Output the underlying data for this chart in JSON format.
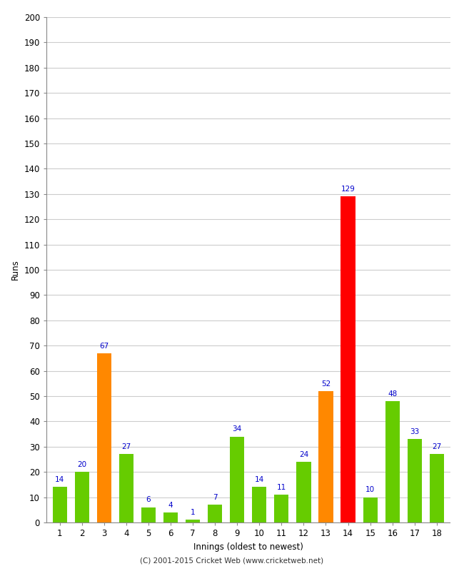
{
  "xlabel": "Innings (oldest to newest)",
  "ylabel": "Runs",
  "categories": [
    1,
    2,
    3,
    4,
    5,
    6,
    7,
    8,
    9,
    10,
    11,
    12,
    13,
    14,
    15,
    16,
    17,
    18
  ],
  "values": [
    14,
    20,
    67,
    27,
    6,
    4,
    1,
    7,
    34,
    14,
    11,
    24,
    52,
    129,
    10,
    48,
    33,
    27
  ],
  "bar_colors": [
    "#66cc00",
    "#66cc00",
    "#ff8800",
    "#66cc00",
    "#66cc00",
    "#66cc00",
    "#66cc00",
    "#66cc00",
    "#66cc00",
    "#66cc00",
    "#66cc00",
    "#66cc00",
    "#ff8800",
    "#ff0000",
    "#66cc00",
    "#66cc00",
    "#66cc00",
    "#66cc00"
  ],
  "ylim": [
    0,
    200
  ],
  "yticks": [
    0,
    10,
    20,
    30,
    40,
    50,
    60,
    70,
    80,
    90,
    100,
    110,
    120,
    130,
    140,
    150,
    160,
    170,
    180,
    190,
    200
  ],
  "label_color": "#0000cc",
  "background_color": "#ffffff",
  "grid_color": "#cccccc",
  "footer": "(C) 2001-2015 Cricket Web (www.cricketweb.net)",
  "bar_width": 0.65
}
